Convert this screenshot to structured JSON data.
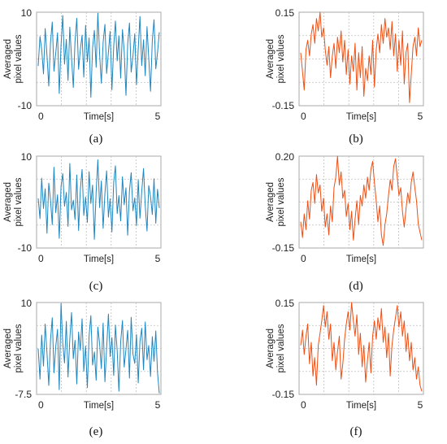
{
  "colors": {
    "blue": "#1f86c0",
    "orange": "#f04e12"
  },
  "chart_data": [
    {
      "type": "line",
      "panel": "(a)",
      "color": "#1f86c0",
      "xlabel": "Time[s]",
      "ylabel": "Averaged pixel values",
      "ylabel_lines": [
        "Averaged",
        "pixel values"
      ],
      "xlim": [
        0,
        5
      ],
      "ylim": [
        -10,
        10
      ],
      "x_ticks": [
        "0",
        "5"
      ],
      "y_ticks": [
        "10",
        "-10"
      ],
      "grid": true,
      "series": [
        {
          "values": [
            -1.5,
            4.8,
            2.1,
            -3.2,
            6.5,
            0.8,
            -5.8,
            3.4,
            7.9,
            -2.6,
            1.2,
            5.6,
            -7.4,
            2.9,
            9.3,
            -1.1,
            4.2,
            -4.6,
            6.8,
            0.3,
            -6.1,
            3.8,
            8.7,
            -2.2,
            1.9,
            5.1,
            -3.9,
            7.2,
            -0.6,
            4.5,
            -8.2,
            2.4,
            6.1,
            -1.8,
            9.8,
            0.9,
            -5.2,
            3.6,
            7.4,
            -3.1,
            1.5,
            5.9,
            -6.6,
            2.7,
            8.1,
            -0.4,
            4.9,
            -4.1,
            6.3,
            1.7,
            -7.8,
            3.2,
            7.7,
            -2.8,
            0.6,
            5.4,
            -5.5,
            2.2,
            9.1,
            -1.4,
            4.1,
            -3.6,
            6.9,
            0.2,
            -6.9,
            3.9,
            8.4,
            -2.1,
            1.3,
            5.7
          ]
        }
      ]
    },
    {
      "type": "line",
      "panel": "(b)",
      "color": "#f04e12",
      "xlabel": "Time[s]",
      "ylabel": "Averaged pixel values",
      "ylabel_lines": [
        "Averaged",
        "pixel values"
      ],
      "xlim": [
        0,
        5
      ],
      "ylim": [
        -0.15,
        0.15
      ],
      "x_ticks": [
        "0",
        "5"
      ],
      "y_ticks": [
        "0.15",
        "-0.15"
      ],
      "grid": true,
      "series": [
        {
          "values": [
            0.02,
            -0.04,
            -0.1,
            0.03,
            0.06,
            0.01,
            0.08,
            0.11,
            0.05,
            0.13,
            0.09,
            0.15,
            0.07,
            0.1,
            0.03,
            -0.02,
            0.04,
            -0.06,
            0.01,
            0.05,
            -0.03,
            0.07,
            0.02,
            0.09,
            -0.01,
            0.06,
            -0.05,
            0.03,
            -0.08,
            0.01,
            -0.04,
            0.05,
            -0.1,
            0.02,
            -0.06,
            0.04,
            -0.12,
            -0.03,
            -0.07,
            0.01,
            -0.05,
            0.06,
            -0.09,
            0.03,
            0.08,
            0.02,
            0.11,
            0.05,
            0.13,
            0.07,
            0.1,
            0.03,
            0.12,
            0.01,
            0.08,
            -0.04,
            0.06,
            -0.02,
            0.09,
            -0.08,
            0.02,
            0.05,
            -0.14,
            -0.05,
            0.04,
            0.07,
            0.01,
            0.1,
            0.04,
            0.06
          ]
        }
      ]
    },
    {
      "type": "line",
      "panel": "(c)",
      "color": "#1f86c0",
      "xlabel": "Time[s]",
      "ylabel": "Averaged pixel values",
      "ylabel_lines": [
        "Averaged",
        "pixel values"
      ],
      "xlim": [
        0,
        5
      ],
      "ylim": [
        -10,
        10
      ],
      "x_ticks": [
        "0",
        "5"
      ],
      "y_ticks": [
        "10",
        "-10"
      ],
      "grid": true,
      "series": [
        {
          "values": [
            0.8,
            -3.6,
            5.2,
            -1.4,
            2.9,
            -6.8,
            4.1,
            0.5,
            -4.9,
            7.6,
            -2.3,
            1.6,
            -7.9,
            3.4,
            6.2,
            -0.9,
            2.1,
            -5.3,
            8.4,
            -1.7,
            0.4,
            -3.8,
            5.9,
            -6.2,
            2.6,
            7.1,
            -2.9,
            1.1,
            -4.4,
            6.6,
            -0.3,
            3.7,
            -8.1,
            2.2,
            9.2,
            -1.2,
            4.6,
            -5.7,
            1.9,
            6.8,
            -3.3,
            0.7,
            -6.5,
            4.3,
            7.9,
            -2.5,
            1.4,
            -4.1,
            5.5,
            -0.6,
            3.1,
            -7.2,
            2.5,
            6.4,
            -1.9,
            0.9,
            -5.1,
            4.8,
            -3.5,
            2.3,
            7.3,
            -0.8,
            -6.3,
            3.6,
            1.2,
            -2.7,
            5.1,
            -4.6,
            2.8,
            -1.3
          ]
        }
      ]
    },
    {
      "type": "line",
      "panel": "(d)",
      "color": "#f04e12",
      "xlabel": "Time[s]",
      "ylabel": "Averaged pixel values",
      "ylabel_lines": [
        "Averaged",
        "pixel values"
      ],
      "xlim": [
        0,
        5
      ],
      "ylim": [
        -0.15,
        0.2
      ],
      "x_ticks": [
        "0"
      ],
      "y_ticks": [
        "0.20",
        "-0.15"
      ],
      "grid": true,
      "series": [
        {
          "values": [
            -0.05,
            -0.11,
            -0.02,
            -0.08,
            0.03,
            -0.04,
            0.07,
            0.1,
            0.02,
            0.13,
            0.06,
            0.09,
            -0.01,
            0.04,
            -0.07,
            -0.02,
            -0.1,
            0.01,
            -0.05,
            0.08,
            0.12,
            0.2,
            0.09,
            0.14,
            0.04,
            0.07,
            -0.03,
            0.02,
            -0.08,
            -0.01,
            -0.12,
            -0.04,
            0.03,
            -0.06,
            0.05,
            0.01,
            0.09,
            0.04,
            0.12,
            0.07,
            0.15,
            0.18,
            0.1,
            0.03,
            -0.05,
            0.01,
            -0.1,
            -0.14,
            -0.06,
            -0.02,
            0.05,
            0.11,
            0.07,
            0.16,
            0.19,
            0.12,
            0.05,
            0.08,
            -0.01,
            -0.07,
            0.0,
            0.06,
            0.02,
            0.1,
            0.14,
            0.08,
            0.03,
            -0.06,
            -0.09,
            -0.12
          ]
        }
      ]
    },
    {
      "type": "line",
      "panel": "(e)",
      "color": "#1f86c0",
      "xlabel": "Time[s]",
      "ylabel": "Averaged pixel values",
      "ylabel_lines": [
        "Averaged",
        "pixel values"
      ],
      "xlim": [
        0,
        5
      ],
      "ylim": [
        -7.5,
        10
      ],
      "x_ticks": [
        "0",
        "5"
      ],
      "y_ticks": [
        "10",
        "-7.5"
      ],
      "grid": true,
      "series": [
        {
          "values": [
            1.2,
            -4.6,
            3.8,
            -2.1,
            5.9,
            0.4,
            -5.8,
            2.7,
            7.1,
            -3.4,
            1.6,
            4.9,
            -6.6,
            9.8,
            2.3,
            -1.5,
            6.4,
            -4.2,
            3.1,
            8.1,
            -0.7,
            2.8,
            -5.5,
            4.4,
            0.9,
            6.9,
            -3.1,
            1.7,
            -6.2,
            3.6,
            7.5,
            -1.9,
            0.6,
            -4.8,
            5.3,
            2.1,
            -2.6,
            6.1,
            -5.1,
            1.3,
            7.8,
            -0.3,
            3.3,
            -3.9,
            5.7,
            0.8,
            -6.9,
            2.5,
            6.6,
            -2.3,
            1.1,
            4.7,
            -4.4,
            7.2,
            0.2,
            -1.6,
            3.9,
            -5.3,
            2.6,
            5.1,
            -2.8,
            6.3,
            -0.9,
            1.8,
            -4.1,
            3.5,
            -1.2,
            4.6,
            -3.3,
            -7.3
          ]
        }
      ]
    },
    {
      "type": "line",
      "panel": "(f)",
      "color": "#f04e12",
      "xlabel": "Time[s]",
      "ylabel": "Averaged pixel values",
      "ylabel_lines": [
        "Averaged",
        "pixel values"
      ],
      "xlim": [
        0,
        5
      ],
      "ylim": [
        -0.15,
        0.15
      ],
      "x_ticks": [
        "0",
        "5"
      ],
      "y_ticks": [
        "0.15",
        "-0.15"
      ],
      "grid": true,
      "series": [
        {
          "values": [
            0.01,
            0.06,
            -0.02,
            0.04,
            0.08,
            -0.05,
            0.02,
            -0.09,
            -0.03,
            -0.12,
            0.01,
            0.05,
            0.09,
            0.14,
            0.07,
            0.12,
            0.03,
            0.08,
            -0.04,
            0.02,
            -0.07,
            -0.01,
            0.04,
            -0.1,
            -0.05,
            0.03,
            0.08,
            0.12,
            0.06,
            0.15,
            0.09,
            0.04,
            0.11,
            -0.02,
            0.05,
            -0.06,
            0.01,
            -0.11,
            -0.04,
            0.02,
            -0.08,
            0.04,
            0.09,
            0.03,
            0.1,
            0.06,
            0.13,
            0.02,
            0.07,
            -0.03,
            0.05,
            -0.09,
            0.01,
            0.06,
            0.1,
            0.14,
            0.07,
            0.12,
            0.04,
            0.09,
            -0.01,
            0.05,
            -0.04,
            0.02,
            -0.07,
            -0.03,
            -0.1,
            -0.06,
            -0.12,
            -0.14
          ]
        }
      ]
    }
  ]
}
